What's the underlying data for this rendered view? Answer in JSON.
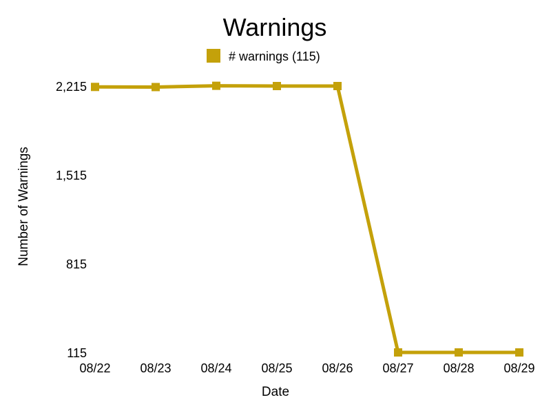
{
  "chart_data": {
    "type": "line",
    "title": "Warnings",
    "xlabel": "Date",
    "ylabel": "Number of Warnings",
    "categories": [
      "08/22",
      "08/23",
      "08/24",
      "08/25",
      "08/26",
      "08/27",
      "08/28",
      "08/29"
    ],
    "yticks": [
      115,
      815,
      1515,
      2215
    ],
    "ytick_labels": [
      "115",
      "815",
      "1,515",
      "2,215"
    ],
    "ylim": [
      115,
      2215
    ],
    "grid": false,
    "legend_position": "top-center",
    "series": [
      {
        "name": "# warnings (115)",
        "values": [
          2208,
          2207,
          2217,
          2215,
          2215,
          115,
          115,
          115
        ],
        "color": "#C4A10A",
        "marker": "square"
      }
    ]
  }
}
